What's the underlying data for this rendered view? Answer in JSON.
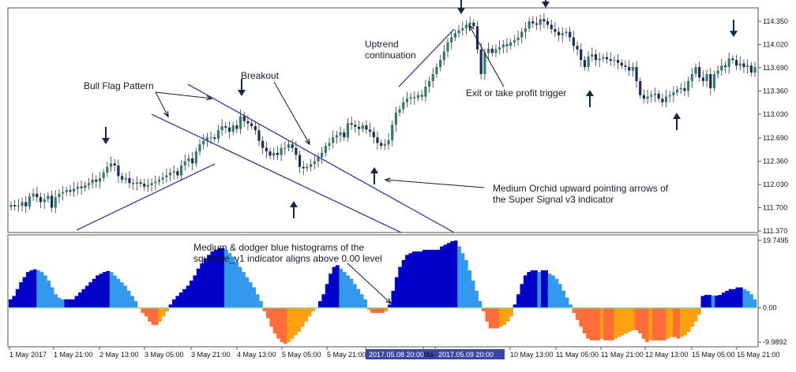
{
  "colors": {
    "candle_up": "#2e7d6e",
    "candle_down": "#1b2c5a",
    "wick": "#333333",
    "trendline": "#3e47a0",
    "arrow": "#13294b",
    "hist_dark_blue": "#0000c8",
    "hist_dodger_blue": "#3399ee",
    "hist_orange_red": "#ff6e3a",
    "hist_orange": "#ffa010",
    "zero_line": "#8fd6b0",
    "date_tag": "#3946a8"
  },
  "chart_data": [
    {
      "type": "candlestick",
      "title": "",
      "price_axis": {
        "ticks": [
          "114.350",
          "114.020",
          "113.690",
          "113.360",
          "113.030",
          "112.690",
          "112.360",
          "112.030",
          "111.700",
          "111.370"
        ],
        "range": [
          111.37,
          114.35
        ]
      },
      "close_series": [
        111.74,
        111.72,
        111.73,
        111.78,
        111.72,
        111.86,
        111.9,
        111.85,
        111.78,
        111.82,
        111.87,
        111.7,
        111.85,
        111.9,
        111.92,
        111.95,
        111.93,
        111.97,
        112.0,
        111.98,
        112.02,
        112.05,
        112.1,
        112.07,
        112.12,
        112.2,
        112.28,
        112.33,
        112.3,
        112.15,
        112.1,
        112.12,
        112.05,
        112.04,
        112.06,
        112.04,
        112.0,
        112.02,
        112.05,
        112.07,
        112.1,
        112.13,
        112.16,
        112.2,
        112.22,
        112.16,
        112.3,
        112.36,
        112.4,
        112.33,
        112.5,
        112.6,
        112.65,
        112.7,
        112.7,
        112.68,
        112.8,
        112.86,
        112.84,
        112.78,
        112.87,
        112.82,
        113.0,
        112.93,
        112.9,
        112.86,
        112.8,
        112.65,
        112.55,
        112.5,
        112.44,
        112.48,
        112.45,
        112.55,
        112.55,
        112.6,
        112.55,
        112.45,
        112.28,
        112.26,
        112.28,
        112.32,
        112.36,
        112.42,
        112.48,
        112.58,
        112.62,
        112.7,
        112.73,
        112.77,
        112.7,
        112.9,
        112.88,
        112.85,
        112.82,
        112.87,
        112.81,
        112.78,
        112.7,
        112.62,
        112.58,
        112.6,
        112.66,
        112.88,
        113.05,
        113.1,
        113.2,
        113.25,
        113.27,
        113.26,
        113.3,
        113.28,
        113.42,
        113.5,
        113.6,
        113.7,
        113.8,
        113.92,
        114.05,
        114.12,
        114.18,
        114.22,
        114.25,
        114.3,
        114.33,
        114.28,
        113.95,
        113.6,
        113.9,
        113.96,
        113.9,
        113.95,
        113.98,
        114.02,
        114.0,
        114.05,
        114.08,
        114.12,
        114.2,
        114.25,
        114.35,
        114.32,
        114.3,
        114.38,
        114.35,
        114.3,
        114.24,
        114.2,
        114.15,
        114.18,
        114.2,
        114.12,
        114.0,
        113.95,
        113.8,
        113.7,
        113.85,
        113.88,
        113.8,
        113.82,
        113.84,
        113.81,
        113.79,
        113.8,
        113.76,
        113.72,
        113.7,
        113.65,
        113.7,
        113.5,
        113.3,
        113.25,
        113.28,
        113.3,
        113.32,
        113.25,
        113.2,
        113.28,
        113.3,
        113.34,
        113.38,
        113.4,
        113.36,
        113.5,
        113.6,
        113.7,
        113.55,
        113.5,
        113.6,
        113.4,
        113.6,
        113.65,
        113.72,
        113.7,
        113.82,
        113.8,
        113.72,
        113.75,
        113.7,
        113.72,
        113.62,
        113.7
      ],
      "x_axis": {
        "labels": [
          "1 May 2017",
          "1 May 21:00",
          "2 May 13:00",
          "3 May 05:00",
          "3 May 21:00",
          "4 May 13:00",
          "5 May 05:00",
          "5 May 21:00",
          "2017.05.08 20:00",
          "Ma",
          "2017.05.09 20:00",
          "10 May 13:00",
          "11 May 05:00",
          "11 May 21:00",
          "12 May 13:00",
          "15 May 05:00",
          "15 May 21:00"
        ],
        "highlighted": [
          "2017.05.08 20:00",
          "2017.05.09 20:00"
        ]
      },
      "annotations": {
        "bull_flag": "Bull Flag Pattern",
        "breakout": "Breakout",
        "uptrend_line1": "Uptrend",
        "uptrend_line2": "continuation",
        "exit_trigger": "Exit or take profit trigger",
        "signal_line1": "Medium Orchid upward pointing arrows of",
        "signal_line2": "the Super Signal v3 indicator"
      }
    },
    {
      "type": "bar",
      "title": "",
      "y_axis": {
        "ticks": [
          "19.7495",
          "0.00",
          "-9.9892"
        ],
        "range": [
          -9.9892,
          19.7495
        ]
      },
      "values": [
        2.5,
        3.5,
        5.5,
        7.5,
        9.0,
        10.5,
        11.0,
        11.3,
        11.0,
        10.5,
        9.5,
        8.0,
        6.0,
        4.0,
        3.0,
        2.5,
        2.5,
        2.5,
        2.5,
        3.5,
        4.5,
        5.5,
        6.5,
        7.5,
        8.5,
        9.5,
        10.0,
        10.5,
        10.8,
        10.5,
        9.5,
        8.5,
        7.5,
        6.5,
        5.0,
        3.5,
        2.0,
        0.0,
        -1.5,
        -2.5,
        -4.0,
        -5.0,
        -5.0,
        -4.0,
        -2.5,
        -1.0,
        1.0,
        2.5,
        3.5,
        4.5,
        5.5,
        6.5,
        8.0,
        9.5,
        11.5,
        13.0,
        14.5,
        15.5,
        16.5,
        17.0,
        17.5,
        17.5,
        17.0,
        16.0,
        15.0,
        13.5,
        12.0,
        10.5,
        9.0,
        7.5,
        6.0,
        4.0,
        2.0,
        -1.0,
        -3.0,
        -5.5,
        -7.5,
        -9.0,
        -10.0,
        -10.5,
        -10.0,
        -9.0,
        -8.0,
        -7.0,
        -5.5,
        -4.0,
        -2.5,
        -1.0,
        0.0,
        2.0,
        4.0,
        7.0,
        10.0,
        12.0,
        12.5,
        11.5,
        10.5,
        9.5,
        8.5,
        7.0,
        5.5,
        4.0,
        2.5,
        -0.5,
        -1.5,
        -1.5,
        -1.5,
        -1.5,
        -1.0,
        1.0,
        5.0,
        9.0,
        12.0,
        14.0,
        15.5,
        16.0,
        16.5,
        16.5,
        16.5,
        17.0,
        17.0,
        17.0,
        17.0,
        17.0,
        18.0,
        18.5,
        19.0,
        19.5,
        19.7,
        18.0,
        16.0,
        14.0,
        11.0,
        8.0,
        5.0,
        2.0,
        -1.0,
        -4.0,
        -6.0,
        -6.0,
        -6.0,
        -5.5,
        -5.0,
        -4.0,
        -2.5,
        1.0,
        4.0,
        7.0,
        9.5,
        10.5,
        11.0,
        11.0,
        10.5,
        11.0,
        11.0,
        10.0,
        9.5,
        8.5,
        7.0,
        5.0,
        3.0,
        1.0,
        -1.5,
        -3.5,
        -5.5,
        -7.5,
        -9.0,
        -9.5,
        -9.5,
        -9.5,
        -9.0,
        -9.5,
        -9.5,
        -9.5,
        -9.0,
        -8.5,
        -8.0,
        -7.5,
        -7.0,
        -6.5,
        -6.5,
        -7.5,
        -9.0,
        -10.0,
        -9.5,
        -9.5,
        -9.5,
        -9.5,
        -9.5,
        -9.0,
        -8.5,
        -8.5,
        -9.0,
        -8.5,
        -8.0,
        -7.0,
        -5.5,
        -4.0,
        -2.0,
        3.5,
        3.8,
        3.8,
        3.6,
        3.6,
        3.8,
        4.5,
        5.0,
        5.5,
        5.5,
        6.0,
        6.0,
        5.5,
        5.0,
        4.0,
        2.5
      ],
      "annotation": {
        "line1": "Medium & dodger blue histograms of the",
        "line2": "squeeze_v1 indicator aligns above 0.00 level"
      }
    }
  ]
}
